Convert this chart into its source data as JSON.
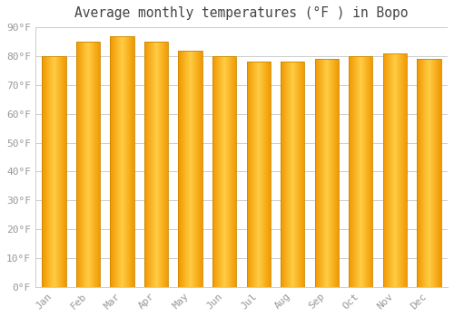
{
  "title": "Average monthly temperatures (°F ) in Bopo",
  "months": [
    "Jan",
    "Feb",
    "Mar",
    "Apr",
    "May",
    "Jun",
    "Jul",
    "Aug",
    "Sep",
    "Oct",
    "Nov",
    "Dec"
  ],
  "values": [
    80,
    85,
    87,
    85,
    82,
    80,
    78,
    78,
    79,
    80,
    81,
    79
  ],
  "bar_color_left": "#F5A000",
  "bar_color_center": "#FFD050",
  "bar_color_right": "#F5A000",
  "background_color": "#FFFFFF",
  "plot_bg_color": "#FFFFFF",
  "grid_color": "#CCCCCC",
  "ylim": [
    0,
    90
  ],
  "yticks": [
    0,
    10,
    20,
    30,
    40,
    50,
    60,
    70,
    80,
    90
  ],
  "ytick_labels": [
    "0°F",
    "10°F",
    "20°F",
    "30°F",
    "40°F",
    "50°F",
    "60°F",
    "70°F",
    "80°F",
    "90°F"
  ],
  "title_fontsize": 10.5,
  "tick_fontsize": 8,
  "tick_color": "#999999",
  "title_color": "#444444",
  "bar_edge_color": "#CC8800",
  "bar_edge_width": 0.5
}
